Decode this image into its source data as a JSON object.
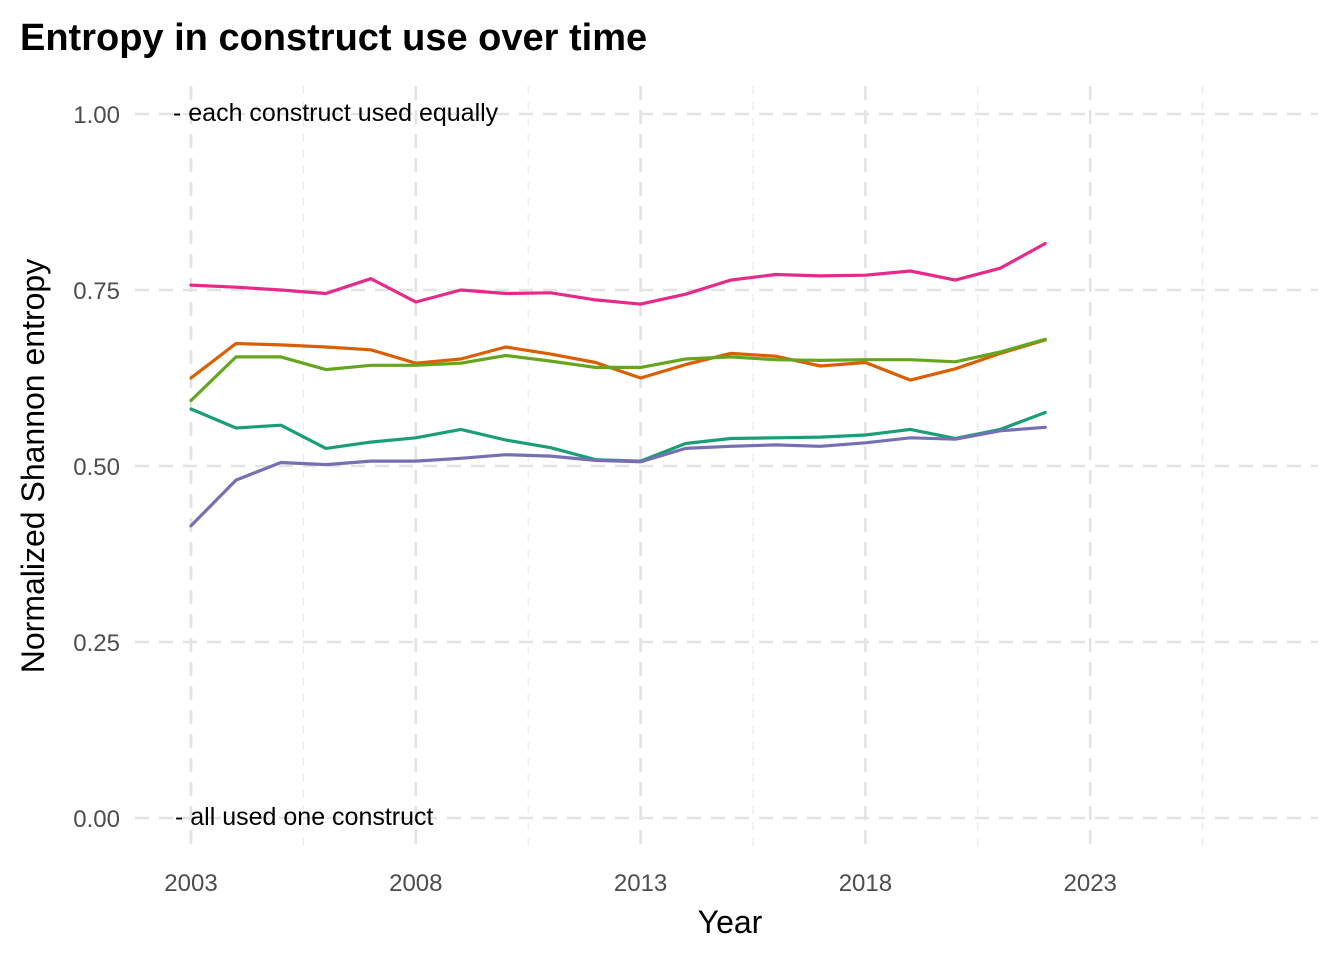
{
  "chart_data": {
    "type": "line",
    "title": "Entropy in construct use over time",
    "xlabel": "Year",
    "ylabel": "Normalized Shannon entropy",
    "xlim": [
      2003,
      2028
    ],
    "ylim": [
      0,
      1
    ],
    "x_ticks": [
      2003,
      2008,
      2013,
      2018,
      2023
    ],
    "x_tick_labels": [
      "2003",
      "2008",
      "2013",
      "2018",
      "2023"
    ],
    "y_ticks": [
      0,
      0.25,
      0.5,
      0.75,
      1.0
    ],
    "y_tick_labels": [
      "0.00",
      "0.25",
      "0.50",
      "0.75",
      "1.00"
    ],
    "grid": true,
    "legend": "none",
    "x": [
      2003,
      2004,
      2005,
      2006,
      2007,
      2008,
      2009,
      2010,
      2011,
      2012,
      2013,
      2014,
      2015,
      2016,
      2017,
      2018,
      2019,
      2020,
      2021,
      2022
    ],
    "series": [
      {
        "color": "#e7298a",
        "values": [
          0.757,
          0.754,
          0.75,
          0.745,
          0.766,
          0.733,
          0.75,
          0.745,
          0.746,
          0.736,
          0.73,
          0.744,
          0.764,
          0.772,
          0.77,
          0.771,
          0.777,
          0.764,
          0.781,
          0.816
        ]
      },
      {
        "color": "#d95f02",
        "values": [
          0.625,
          0.674,
          0.672,
          0.669,
          0.665,
          0.646,
          0.652,
          0.669,
          0.659,
          0.647,
          0.625,
          0.644,
          0.66,
          0.656,
          0.642,
          0.647,
          0.622,
          0.638,
          0.66,
          0.679
        ]
      },
      {
        "color": "#66a61e",
        "values": [
          0.593,
          0.655,
          0.655,
          0.637,
          0.643,
          0.643,
          0.646,
          0.657,
          0.649,
          0.64,
          0.64,
          0.652,
          0.655,
          0.651,
          0.65,
          0.651,
          0.651,
          0.648,
          0.662,
          0.68
        ]
      },
      {
        "color": "#1b9e77",
        "values": [
          0.581,
          0.554,
          0.558,
          0.525,
          0.534,
          0.54,
          0.552,
          0.537,
          0.526,
          0.509,
          0.507,
          0.532,
          0.539,
          0.54,
          0.541,
          0.544,
          0.552,
          0.539,
          0.552,
          0.576
        ]
      },
      {
        "color": "#7570b3",
        "values": [
          0.415,
          0.48,
          0.505,
          0.502,
          0.507,
          0.507,
          0.511,
          0.516,
          0.514,
          0.508,
          0.506,
          0.525,
          0.528,
          0.53,
          0.528,
          0.533,
          0.54,
          0.538,
          0.55,
          0.555
        ]
      }
    ],
    "annotations": [
      {
        "text": "- each construct used equally",
        "x": 2003,
        "y": 1.0
      },
      {
        "text": "- all used one construct",
        "x": 2003,
        "y": 0.0
      }
    ]
  }
}
